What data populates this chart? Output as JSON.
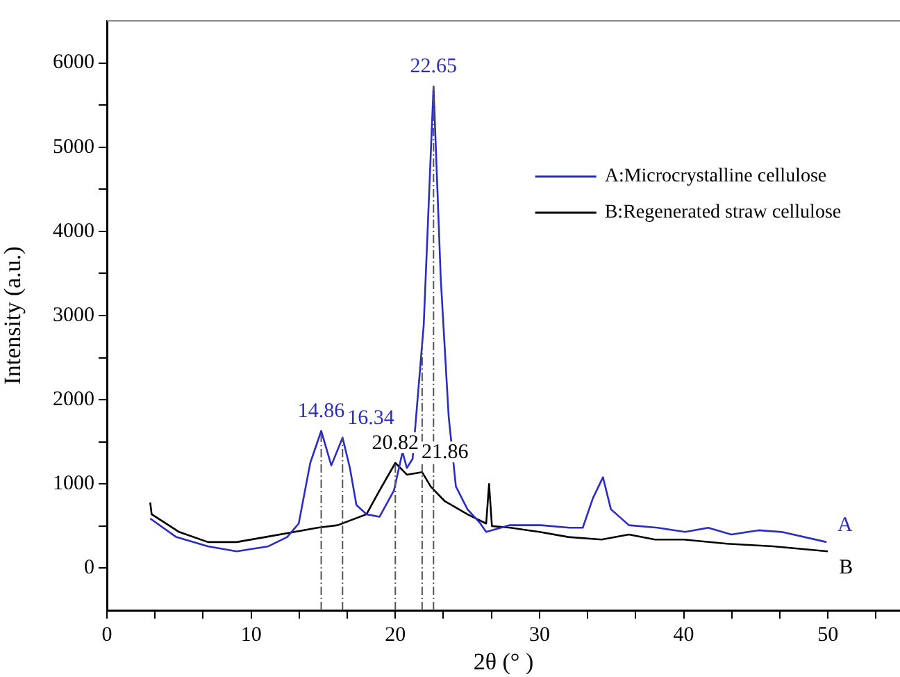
{
  "chart_data": {
    "type": "line",
    "xlabel": "2θ (° )",
    "ylabel": "Intensity (a.u.)",
    "xlim": [
      0,
      55
    ],
    "ylim": [
      -500,
      6500
    ],
    "xticks": [
      0,
      {
        "value": 3.33,
        "label": null
      },
      {
        "value": 6.67,
        "label": null
      },
      10,
      {
        "value": 13.33,
        "label": null
      },
      {
        "value": 16.67,
        "label": null
      },
      20,
      {
        "value": 23.33,
        "label": null
      },
      {
        "value": 26.67,
        "label": null
      },
      30,
      {
        "value": 33.33,
        "label": null
      },
      {
        "value": 36.67,
        "label": null
      },
      40,
      {
        "value": 43.33,
        "label": null
      },
      {
        "value": 46.67,
        "label": null
      },
      50,
      {
        "value": 53.33,
        "label": null
      }
    ],
    "yticks": [
      0,
      {
        "value": 500,
        "label": null
      },
      1000,
      {
        "value": 1500,
        "label": null
      },
      2000,
      {
        "value": 2500,
        "label": null
      },
      3000,
      {
        "value": 3500,
        "label": null
      },
      4000,
      {
        "value": 4500,
        "label": null
      },
      5000,
      {
        "value": 5500,
        "label": null
      },
      6000
    ],
    "grid": false,
    "legend": "top right",
    "marker": "none",
    "line_style": "solid",
    "series": [
      {
        "name": "A:Microcrystalline cellulose",
        "color": "#2b2bc8",
        "x": [
          3.0,
          4.8,
          7.0,
          9.0,
          11.2,
          12.5,
          13.3,
          14.1,
          14.86,
          15.56,
          16.34,
          16.85,
          17.3,
          18.0,
          18.9,
          19.9,
          20.5,
          20.8,
          21.2,
          21.97,
          22.65,
          23.15,
          23.7,
          24.2,
          25.0,
          25.9,
          26.3,
          27.9,
          30.1,
          32.1,
          33.0,
          33.7,
          34.4,
          34.95,
          36.2,
          38.2,
          40.1,
          41.7,
          43.3,
          45.2,
          46.8,
          49.9
        ],
        "values": [
          590,
          370,
          260,
          200,
          260,
          370,
          530,
          1250,
          1630,
          1220,
          1550,
          1190,
          750,
          640,
          610,
          920,
          1380,
          1190,
          1300,
          2890,
          5720,
          3440,
          1800,
          970,
          700,
          530,
          430,
          510,
          510,
          480,
          480,
          830,
          1080,
          700,
          510,
          480,
          430,
          480,
          400,
          450,
          430,
          310
        ]
      },
      {
        "name": "B:Regenerated straw cellulose",
        "color": "#000000",
        "x": [
          3.0,
          3.1,
          5.0,
          7.0,
          9.0,
          11.0,
          13.0,
          14.6,
          16.0,
          18.0,
          18.9,
          20.0,
          20.8,
          21.86,
          22.45,
          23.4,
          25.0,
          26.3,
          26.5,
          26.7,
          28.0,
          30.0,
          32.0,
          34.3,
          36.2,
          38.0,
          40.0,
          43.0,
          46.2,
          50.0
        ],
        "values": [
          780,
          640,
          430,
          310,
          310,
          370,
          430,
          480,
          510,
          640,
          920,
          1250,
          1110,
          1140,
          970,
          800,
          640,
          530,
          1000,
          500,
          480,
          430,
          370,
          340,
          400,
          340,
          340,
          290,
          260,
          200
        ]
      }
    ],
    "ref_lines": [
      {
        "axis": "x",
        "value": 14.86,
        "label": null,
        "color": "#555555",
        "line_style": "dashdot"
      },
      {
        "axis": "x",
        "value": 16.34,
        "label": null,
        "color": "#555555",
        "line_style": "dashdot"
      },
      {
        "axis": "x",
        "value": 20.0,
        "label": null,
        "color": "#555555",
        "line_style": "dashdot"
      },
      {
        "axis": "x",
        "value": 21.86,
        "label": null,
        "color": "#555555",
        "line_style": "dashdot"
      },
      {
        "axis": "x",
        "value": 22.65,
        "label": null,
        "color": "#555555",
        "line_style": "dashdot"
      }
    ],
    "annotations": [
      {
        "text": "14.86",
        "x": 14.86,
        "y": 1630
      },
      {
        "text": "16.34",
        "x": 16.34,
        "y": 1550
      },
      {
        "text": "22.65",
        "x": 22.65,
        "y": 5720
      },
      {
        "text": "20.82",
        "x": 20.0,
        "y": 1250
      },
      {
        "text": "21.86",
        "x": 21.86,
        "y": 1140
      },
      {
        "text": "A",
        "x": 49.9,
        "y": 310
      },
      {
        "text": "B",
        "x": 50.0,
        "y": 200
      }
    ]
  }
}
